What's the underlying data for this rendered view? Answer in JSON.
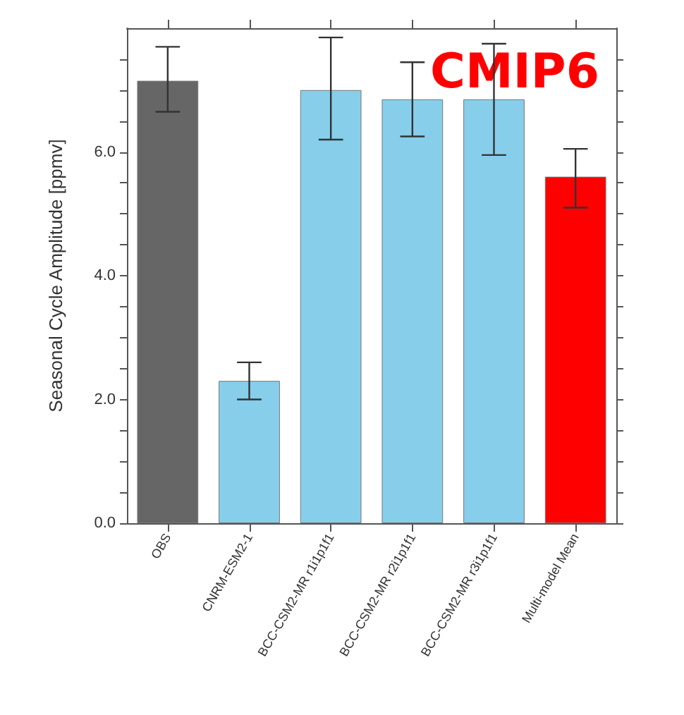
{
  "chart_data": {
    "type": "bar",
    "ylabel": "Seasonal Cycle Amplitude [ppmv]",
    "categories": [
      "OBS",
      "CNRM-ESM2-1",
      "BCC-CSM2-MR r1i1p1f1",
      "BCC-CSM2-MR r2i1p1f1",
      "BCC-CSM2-MR r3i1p1f1",
      "Multi-model Mean"
    ],
    "values": [
      7.15,
      2.3,
      7.0,
      6.85,
      6.85,
      5.6
    ],
    "colors": [
      "#666666",
      "#87ceeb",
      "#87ceeb",
      "#87ceeb",
      "#87ceeb",
      "#ff0000"
    ],
    "errors": [
      [
        6.65,
        7.7
      ],
      [
        2.0,
        2.6
      ],
      [
        6.2,
        7.85
      ],
      [
        6.25,
        7.45
      ],
      [
        5.95,
        7.75
      ],
      [
        5.1,
        6.05
      ]
    ],
    "ylim": [
      0,
      8
    ],
    "yticks": [
      {
        "value": 0,
        "label": "0.0"
      },
      {
        "value": 0.5,
        "label": null
      },
      {
        "value": 1,
        "label": null
      },
      {
        "value": 1.5,
        "label": null
      },
      {
        "value": 2,
        "label": "2.0"
      },
      {
        "value": 2.5,
        "label": null
      },
      {
        "value": 3,
        "label": null
      },
      {
        "value": 3.5,
        "label": null
      },
      {
        "value": 4,
        "label": "4.0"
      },
      {
        "value": 4.5,
        "label": null
      },
      {
        "value": 5,
        "label": null
      },
      {
        "value": 5.5,
        "label": null
      },
      {
        "value": 6,
        "label": "6.0"
      },
      {
        "value": 6.5,
        "label": null
      },
      {
        "value": 7,
        "label": null
      },
      {
        "value": 7.5,
        "label": null
      }
    ],
    "annotations": [
      "CMIP6"
    ],
    "grid": false
  }
}
